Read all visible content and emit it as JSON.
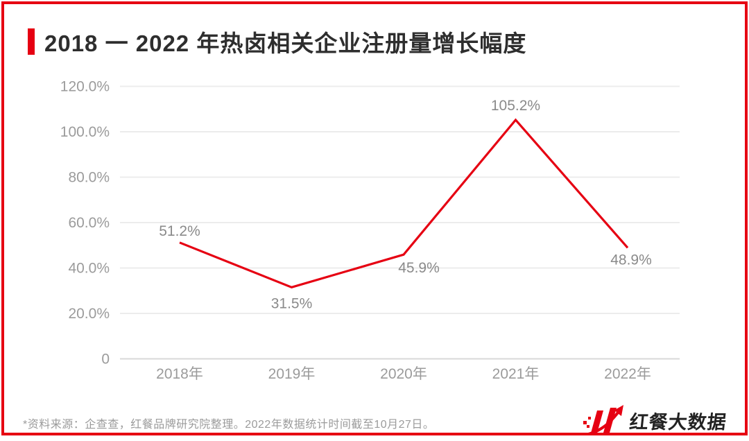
{
  "page": {
    "background": "#ffffff",
    "border_color": "#e60012"
  },
  "header": {
    "title": "2018 一 2022 年热卤相关企业注册量增长幅度",
    "accent_color": "#e60012"
  },
  "chart_data": {
    "type": "line",
    "title": "2018 一 2022 年热卤相关企业注册量增长幅度",
    "categories": [
      "2018年",
      "2019年",
      "2020年",
      "2021年",
      "2022年"
    ],
    "values": [
      51.2,
      31.5,
      45.9,
      105.2,
      48.9
    ],
    "data_labels": [
      "51.2%",
      "31.5%",
      "45.9%",
      "105.2%",
      "48.9%"
    ],
    "y_tick_values": [
      120,
      100,
      80,
      60,
      40,
      20,
      0
    ],
    "y_tick_labels": [
      "120.0%",
      "100.0%",
      "80.0%",
      "60.0%",
      "40.0%",
      "20.0%",
      "0"
    ],
    "ylim": [
      0,
      120
    ],
    "xlabel": "",
    "ylabel": "",
    "grid": true,
    "legend": "none",
    "line_color": "#e60012",
    "label_color": "#8a8a8a",
    "tick_color": "#9b9b9b",
    "grid_color": "#ececec",
    "baseline_color": "#d8d8d8"
  },
  "footer": {
    "source_note": "*资料来源：企查查，红餐品牌研究院整理。2022年数据统计时间截至10月27日。",
    "logo_text": "红餐大数据",
    "logo_color": "#e60012"
  }
}
